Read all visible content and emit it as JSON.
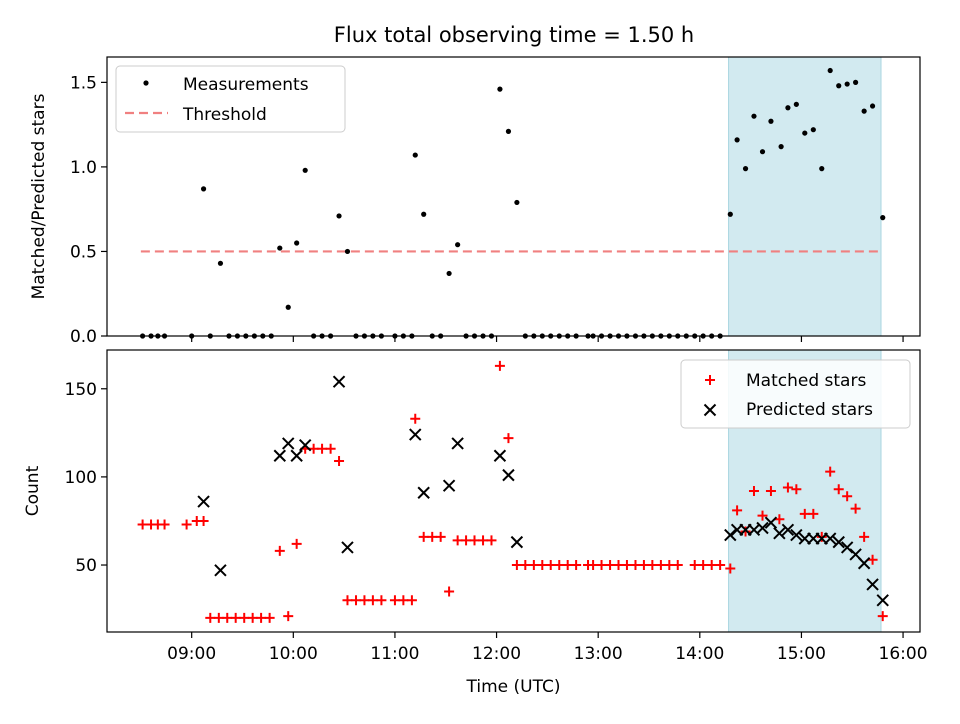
{
  "figure": {
    "title": "Flux total observing time = 1.50 h"
  },
  "chart_data": [
    {
      "type": "scatter",
      "ylabel": "Matched/Predicted stars",
      "xlim": [
        8.1667,
        16.1667
      ],
      "ylim": [
        0,
        1.65
      ],
      "yticks": [
        0.0,
        0.5,
        1.0,
        1.5
      ],
      "ytick_labels": [
        "0.0",
        "0.5",
        "1.0",
        "1.5"
      ],
      "legend_position": "upper left",
      "shaded_region": {
        "x_start": 14.283,
        "x_end": 15.783,
        "color": "#d2eaf0"
      },
      "threshold": {
        "name": "Threshold",
        "value": 0.5,
        "x_start": 8.5,
        "x_end": 15.783,
        "color": "#f08080"
      },
      "series": [
        {
          "name": "Measurements",
          "marker": "dot",
          "color": "#000000",
          "x": [
            8.517,
            8.6,
            8.667,
            8.733,
            9.0,
            9.117,
            9.183,
            9.283,
            9.367,
            9.45,
            9.533,
            9.617,
            9.7,
            9.783,
            9.867,
            9.95,
            10.033,
            10.117,
            10.2,
            10.283,
            10.367,
            10.45,
            10.533,
            10.617,
            10.7,
            10.783,
            10.867,
            11.0,
            11.083,
            11.167,
            11.2,
            11.283,
            11.367,
            11.45,
            11.533,
            11.617,
            11.7,
            11.783,
            11.867,
            11.95,
            12.033,
            12.117,
            12.2,
            12.283,
            12.367,
            12.45,
            12.533,
            12.617,
            12.7,
            12.783,
            12.9,
            12.95,
            13.033,
            13.117,
            13.2,
            13.283,
            13.367,
            13.45,
            13.533,
            13.617,
            13.7,
            13.783,
            13.867,
            13.95,
            14.033,
            14.117,
            14.2,
            14.3,
            14.367,
            14.45,
            14.533,
            14.617,
            14.7,
            14.8,
            14.867,
            14.95,
            15.033,
            15.117,
            15.2,
            15.283,
            15.367,
            15.45,
            15.533,
            15.617,
            15.7,
            15.8
          ],
          "y": [
            0,
            0,
            0,
            0,
            0,
            0.87,
            0,
            0.43,
            0,
            0,
            0,
            0,
            0,
            0,
            0.52,
            0.17,
            0.55,
            0.98,
            0,
            0,
            0,
            0.71,
            0.5,
            0,
            0,
            0,
            0,
            0,
            0,
            0,
            1.07,
            0.72,
            0,
            0,
            0.37,
            0.54,
            0,
            0,
            0,
            0,
            1.46,
            1.21,
            0.79,
            0,
            0,
            0,
            0,
            0,
            0,
            0,
            0,
            0,
            0,
            0,
            0,
            0,
            0,
            0,
            0,
            0,
            0,
            0,
            0,
            0,
            0,
            0,
            0,
            0.72,
            1.16,
            0.99,
            1.3,
            1.09,
            1.27,
            1.12,
            1.35,
            1.37,
            1.2,
            1.22,
            0.99,
            1.57,
            1.48,
            1.49,
            1.5,
            1.33,
            1.36,
            0.7
          ]
        }
      ]
    },
    {
      "type": "scatter",
      "xlabel": "Time (UTC)",
      "ylabel": "Count",
      "xlim": [
        8.1667,
        16.1667
      ],
      "ylim": [
        12,
        172
      ],
      "xticks": [
        9,
        10,
        11,
        12,
        13,
        14,
        15,
        16
      ],
      "xtick_labels": [
        "09:00",
        "10:00",
        "11:00",
        "12:00",
        "13:00",
        "14:00",
        "15:00",
        "16:00"
      ],
      "yticks": [
        50,
        100,
        150
      ],
      "ytick_labels": [
        "50",
        "100",
        "150"
      ],
      "legend_position": "upper right",
      "shaded_region": {
        "x_start": 14.283,
        "x_end": 15.783,
        "color": "#d2eaf0"
      },
      "series": [
        {
          "name": "Matched stars",
          "marker": "plus",
          "color": "#ff0000",
          "x": [
            8.517,
            8.6,
            8.667,
            8.733,
            8.95,
            9.05,
            9.117,
            9.183,
            9.267,
            9.35,
            9.433,
            9.517,
            9.6,
            9.683,
            9.767,
            9.867,
            9.95,
            10.033,
            10.117,
            10.2,
            10.283,
            10.367,
            10.45,
            10.533,
            10.617,
            10.7,
            10.783,
            10.867,
            11.0,
            11.083,
            11.167,
            11.2,
            11.283,
            11.367,
            11.45,
            11.533,
            11.617,
            11.7,
            11.783,
            11.867,
            11.95,
            12.033,
            12.117,
            12.2,
            12.283,
            12.367,
            12.45,
            12.533,
            12.617,
            12.7,
            12.783,
            12.9,
            12.95,
            13.033,
            13.117,
            13.2,
            13.283,
            13.367,
            13.45,
            13.533,
            13.617,
            13.7,
            13.783,
            13.95,
            14.033,
            14.117,
            14.2,
            14.3,
            14.367,
            14.45,
            14.533,
            14.617,
            14.7,
            14.783,
            14.867,
            14.95,
            15.033,
            15.117,
            15.2,
            15.283,
            15.367,
            15.45,
            15.533,
            15.617,
            15.7,
            15.8
          ],
          "y": [
            73,
            73,
            73,
            73,
            73,
            75,
            75,
            20,
            20,
            20,
            20,
            20,
            20,
            20,
            20,
            58,
            21,
            62,
            116,
            116,
            116,
            116,
            109,
            30,
            30,
            30,
            30,
            30,
            30,
            30,
            30,
            133,
            66,
            66,
            66,
            35,
            64,
            64,
            64,
            64,
            64,
            163,
            122,
            50,
            50,
            50,
            50,
            50,
            50,
            50,
            50,
            50,
            50,
            50,
            50,
            50,
            50,
            50,
            50,
            50,
            50,
            50,
            50,
            50,
            50,
            50,
            50,
            48,
            81,
            69,
            92,
            78,
            92,
            76,
            94,
            93,
            79,
            79,
            66,
            103,
            93,
            89,
            82,
            66,
            53,
            21
          ]
        },
        {
          "name": "Predicted stars",
          "marker": "x",
          "color": "#000000",
          "x": [
            9.117,
            9.283,
            9.867,
            9.95,
            10.033,
            10.117,
            10.45,
            10.533,
            11.2,
            11.283,
            11.533,
            11.617,
            12.033,
            12.117,
            12.2,
            14.3,
            14.367,
            14.45,
            14.533,
            14.617,
            14.7,
            14.783,
            14.867,
            14.95,
            15.033,
            15.117,
            15.2,
            15.283,
            15.367,
            15.45,
            15.533,
            15.617,
            15.7,
            15.8
          ],
          "y": [
            86,
            47,
            112,
            119,
            112,
            118,
            154,
            60,
            124,
            91,
            95,
            119,
            112,
            101,
            63,
            67,
            70,
            70,
            70,
            71,
            74,
            68,
            70,
            67,
            65,
            65,
            65,
            65,
            63,
            60,
            56,
            51,
            39,
            30
          ]
        }
      ]
    }
  ]
}
